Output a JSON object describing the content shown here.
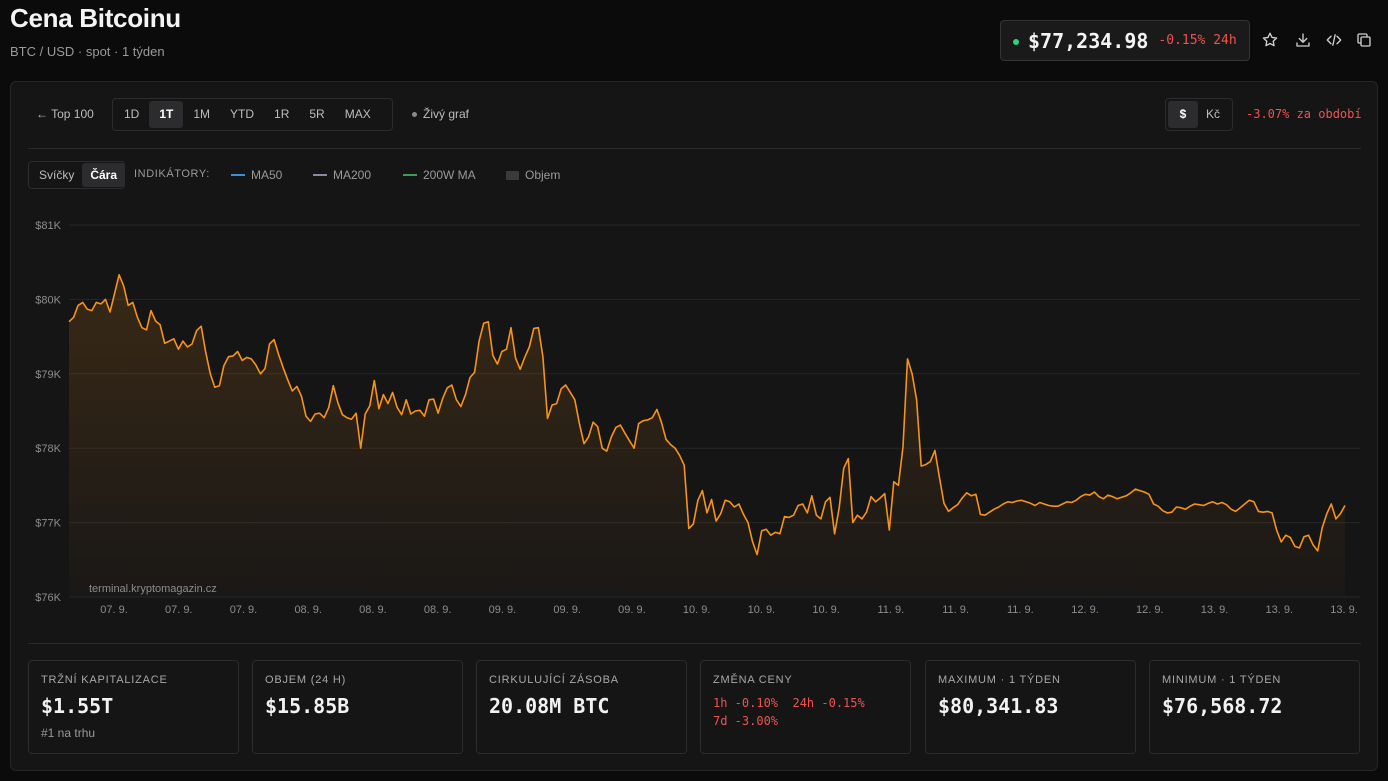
{
  "header": {
    "title": "Cena Bitcoinu",
    "subtitle": "BTC / USD · spot · 1 týden",
    "price": "$77,234.98",
    "change_24h": "-0.15% 24h",
    "icons": [
      "star-icon",
      "download-icon",
      "embed-code-icon",
      "copy-icon"
    ]
  },
  "toolbar": {
    "back_label": "← Top 100",
    "ranges": [
      "1D",
      "1T",
      "1M",
      "YTD",
      "1R",
      "5R",
      "MAX"
    ],
    "active_range": "1T",
    "live_label": "Živý graf",
    "currencies": [
      "$",
      "Kč"
    ],
    "active_currency": "$",
    "period_change": "-3.07% za období"
  },
  "indicators": {
    "chart_types": [
      "Svíčky",
      "Čára"
    ],
    "active_type": "Čára",
    "label": "INDIKÁTORY:",
    "items": [
      {
        "name": "MA50",
        "color": "#3b8fd6"
      },
      {
        "name": "MA200",
        "color": "#8a8aa6"
      },
      {
        "name": "200W MA",
        "color": "#3f9b57"
      },
      {
        "name": "Objem",
        "color": "#3a3a3c"
      }
    ]
  },
  "colors": {
    "line": "#f7931a",
    "negative": "#ef5350",
    "live": "#2fd47a"
  },
  "watermark": "terminal.kryptomagazin.cz",
  "chart_data": {
    "type": "area",
    "yticks": [
      "$81K",
      "$80K",
      "$79K",
      "$78K",
      "$77K",
      "$76K"
    ],
    "ylim": [
      76000,
      81000
    ],
    "xticks": [
      "07. 9.",
      "07. 9.",
      "07. 9.",
      "08. 9.",
      "08. 9.",
      "08. 9.",
      "09. 9.",
      "09. 9.",
      "09. 9.",
      "10. 9.",
      "10. 9.",
      "10. 9.",
      "11. 9.",
      "11. 9.",
      "11. 9.",
      "12. 9.",
      "12. 9.",
      "13. 9.",
      "13. 9.",
      "13. 9."
    ],
    "series": [
      {
        "values": [
          79700,
          79760,
          79920,
          79960,
          79870,
          79850,
          79960,
          79940,
          80000,
          79830,
          80080,
          80330,
          80180,
          79920,
          79960,
          79760,
          79620,
          79590,
          79850,
          79710,
          79660,
          79410,
          79440,
          79470,
          79330,
          79440,
          79360,
          79400,
          79580,
          79640,
          79290,
          79000,
          78820,
          78840,
          79110,
          79230,
          79240,
          79300,
          79180,
          79220,
          79200,
          79120,
          79000,
          79070,
          79400,
          79460,
          79260,
          79080,
          78920,
          78770,
          78830,
          78700,
          78430,
          78360,
          78460,
          78470,
          78410,
          78550,
          78840,
          78610,
          78450,
          78410,
          78390,
          78470,
          78000,
          78460,
          78570,
          78910,
          78530,
          78720,
          78600,
          78750,
          78550,
          78450,
          78650,
          78460,
          78500,
          78510,
          78430,
          78650,
          78660,
          78470,
          78670,
          78810,
          78850,
          78650,
          78560,
          78720,
          78950,
          79020,
          79440,
          79680,
          79700,
          79250,
          79130,
          79300,
          79330,
          79620,
          79210,
          79060,
          79220,
          79360,
          79610,
          79620,
          79230,
          78400,
          78580,
          78600,
          78800,
          78850,
          78750,
          78650,
          78330,
          78060,
          78150,
          78350,
          78290,
          78000,
          77960,
          78150,
          78280,
          78310,
          78200,
          78100,
          78000,
          78330,
          78370,
          78380,
          78410,
          78520,
          78350,
          78120,
          78050,
          78000,
          77900,
          77770,
          76920,
          76980,
          77300,
          77430,
          77130,
          77310,
          77020,
          77120,
          77300,
          77280,
          77210,
          77250,
          77110,
          77000,
          76740,
          76570,
          76890,
          76910,
          76830,
          76870,
          76850,
          77080,
          77070,
          77100,
          77230,
          77250,
          77130,
          77360,
          77100,
          77050,
          77280,
          77340,
          76850,
          77200,
          77730,
          77860,
          77000,
          77100,
          77050,
          77140,
          77350,
          77280,
          77330,
          77390,
          76900,
          77550,
          77500,
          78020,
          79200,
          79000,
          78650,
          77760,
          77780,
          77820,
          77970,
          77610,
          77260,
          77150,
          77200,
          77240,
          77330,
          77400,
          77360,
          77380,
          77110,
          77100,
          77140,
          77180,
          77210,
          77250,
          77280,
          77270,
          77290,
          77300,
          77280,
          77260,
          77230,
          77270,
          77250,
          77230,
          77220,
          77220,
          77250,
          77280,
          77270,
          77300,
          77350,
          77380,
          77370,
          77410,
          77350,
          77320,
          77370,
          77350,
          77320,
          77340,
          77360,
          77400,
          77450,
          77430,
          77410,
          77380,
          77250,
          77220,
          77160,
          77130,
          77140,
          77210,
          77200,
          77180,
          77220,
          77250,
          77240,
          77230,
          77260,
          77280,
          77250,
          77270,
          77240,
          77180,
          77150,
          77200,
          77250,
          77300,
          77280,
          77150,
          77140,
          77150,
          77130,
          76900,
          76740,
          76830,
          76800,
          76680,
          76660,
          76810,
          76830,
          76700,
          76620,
          76930,
          77120,
          77250,
          77050,
          77120,
          77230
        ]
      }
    ]
  },
  "stats": [
    {
      "label": "TRŽNÍ KAPITALIZACE",
      "value": "$1.55T",
      "sub": "#1 na trhu"
    },
    {
      "label": "OBJEM (24 H)",
      "value": "$15.85B"
    },
    {
      "label": "CIRKULUJÍCÍ ZÁSOBA",
      "value": "20.08M BTC"
    },
    {
      "label": "ZMĚNA CENY",
      "change_line1": "1h -0.10%  24h -0.15%",
      "change_line2": "7d -3.00%"
    },
    {
      "label": "MAXIMUM · 1 TÝDEN",
      "value": "$80,341.83"
    },
    {
      "label": "MINIMUM · 1 TÝDEN",
      "value": "$76,568.72"
    }
  ]
}
